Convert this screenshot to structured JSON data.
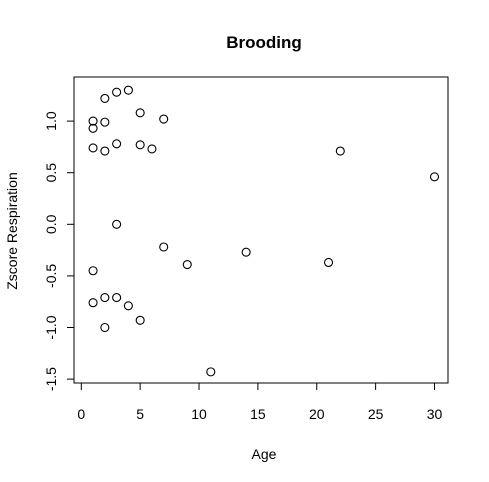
{
  "chart_data": {
    "type": "scatter",
    "title": "Brooding",
    "xlabel": "Age",
    "ylabel": "Zscore Respiration",
    "xlim": [
      0,
      31
    ],
    "ylim": [
      -1.5,
      1.35
    ],
    "x_ticks": [
      0,
      5,
      10,
      15,
      20,
      25,
      30
    ],
    "y_ticks": [
      -1.5,
      -1.0,
      -0.5,
      0.0,
      0.5,
      1.0
    ],
    "x_tick_labels": [
      "0",
      "5",
      "10",
      "15",
      "20",
      "25",
      "30"
    ],
    "y_tick_labels": [
      "-1.5",
      "-1.0",
      "-0.5",
      "0.0",
      "0.5",
      "1.0"
    ],
    "grid": false,
    "legend": false,
    "point_style": "open-circle",
    "points": [
      {
        "x": 1,
        "y": 1.0
      },
      {
        "x": 1,
        "y": 0.93
      },
      {
        "x": 1,
        "y": 0.74
      },
      {
        "x": 1,
        "y": -0.45
      },
      {
        "x": 1,
        "y": -0.76
      },
      {
        "x": 2,
        "y": 1.22
      },
      {
        "x": 2,
        "y": 0.99
      },
      {
        "x": 2,
        "y": 0.71
      },
      {
        "x": 2,
        "y": -0.71
      },
      {
        "x": 2,
        "y": -1.0
      },
      {
        "x": 3,
        "y": 1.28
      },
      {
        "x": 3,
        "y": 0.78
      },
      {
        "x": 3,
        "y": 0.0
      },
      {
        "x": 3,
        "y": -0.71
      },
      {
        "x": 4,
        "y": 1.3
      },
      {
        "x": 4,
        "y": -0.79
      },
      {
        "x": 5,
        "y": 1.08
      },
      {
        "x": 5,
        "y": 0.77
      },
      {
        "x": 5,
        "y": -0.93
      },
      {
        "x": 6,
        "y": 0.73
      },
      {
        "x": 7,
        "y": 1.02
      },
      {
        "x": 7,
        "y": -0.22
      },
      {
        "x": 9,
        "y": -0.39
      },
      {
        "x": 11,
        "y": -1.43
      },
      {
        "x": 14,
        "y": -0.27
      },
      {
        "x": 21,
        "y": -0.37
      },
      {
        "x": 22,
        "y": 0.71
      },
      {
        "x": 30,
        "y": 0.46
      }
    ]
  }
}
